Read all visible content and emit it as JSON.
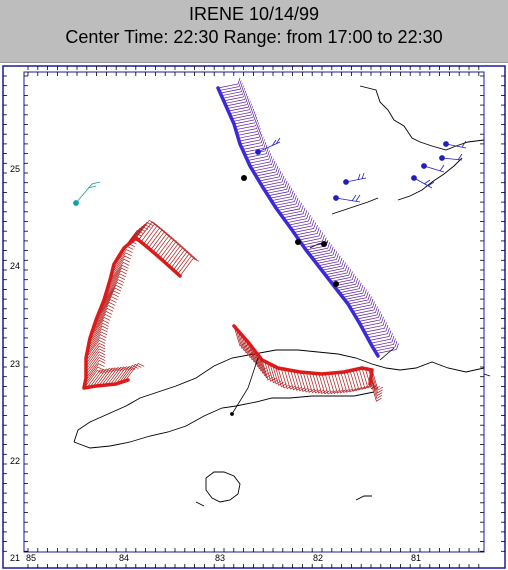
{
  "header": {
    "title": "IRENE 10/14/99",
    "subtitle": "Center Time: 22:30  Range: from 17:00 to 22:30"
  },
  "map": {
    "lat_labels": [
      "25",
      "24",
      "23",
      "22",
      "21"
    ],
    "lon_labels": [
      "85",
      "84",
      "83",
      "82",
      "81"
    ],
    "colors": {
      "frame": "#1a1aa0",
      "coast": "#000000",
      "red_track": "#dd1a1a",
      "red_barbs": "#b01818",
      "blue_track": "#3a2ad8",
      "blue_barbs": "#5a1aa0",
      "stations": "#2020c0",
      "station_teal": "#10a0a0"
    }
  }
}
